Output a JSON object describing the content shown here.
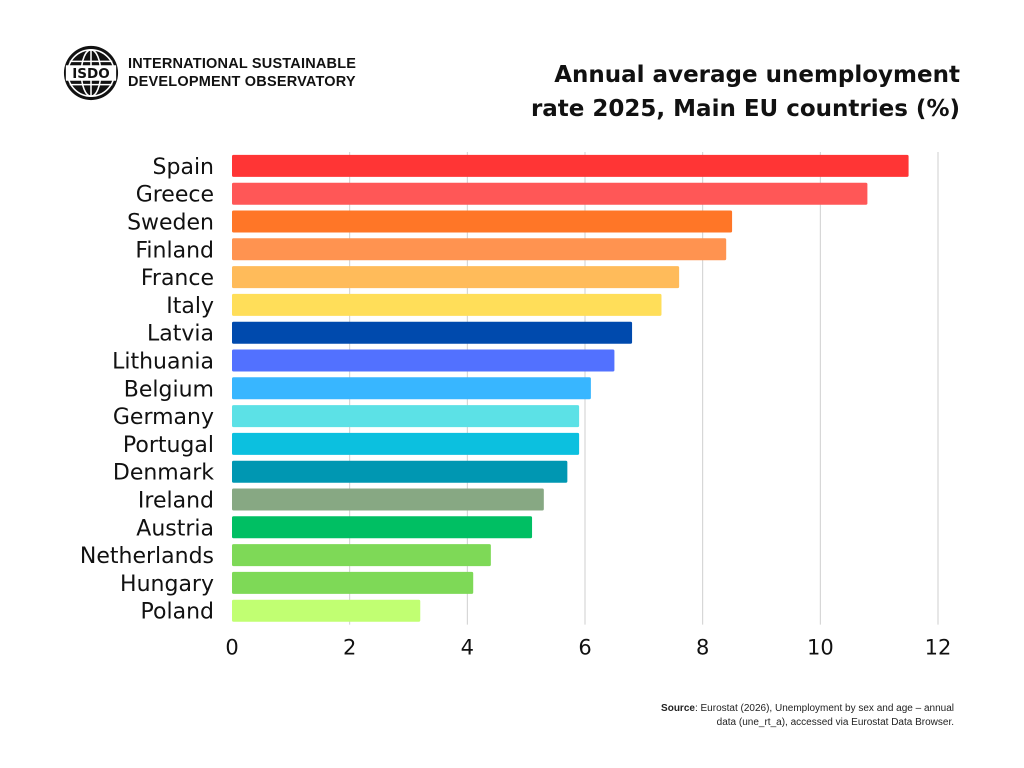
{
  "brand": {
    "logo_text": "ISDO",
    "name_line1": "INTERNATIONAL SUSTAINABLE",
    "name_line2": "DEVELOPMENT OBSERVATORY",
    "logo_icon": "globe-icon"
  },
  "title_line1": "Annual average unemployment",
  "title_line2": "rate 2025, Main EU countries (%)",
  "source": {
    "label": "Source",
    "line1": ": Eurostat (2026), Unemployment by sex and age – annual",
    "line2": "data (une_rt_a), accessed via Eurostat Data Browser."
  },
  "chart_data": {
    "type": "bar",
    "orientation": "horizontal",
    "title": "Annual average unemployment rate 2025, Main EU countries (%)",
    "xlabel": "",
    "ylabel": "",
    "xlim": [
      0,
      12
    ],
    "xticks": [
      0,
      2,
      4,
      6,
      8,
      10,
      12
    ],
    "grid": true,
    "categories": [
      "Spain",
      "Greece",
      "Sweden",
      "Finland",
      "France",
      "Italy",
      "Latvia",
      "Lithuania",
      "Belgium",
      "Germany",
      "Portugal",
      "Denmark",
      "Ireland",
      "Austria",
      "Netherlands",
      "Hungary",
      "Poland"
    ],
    "values": [
      11.5,
      10.8,
      8.5,
      8.4,
      7.6,
      7.3,
      6.8,
      6.5,
      6.1,
      5.9,
      5.9,
      5.7,
      5.3,
      5.1,
      4.4,
      4.1,
      3.2
    ],
    "colors": [
      "#ff3535",
      "#ff5757",
      "#ff7627",
      "#ff9350",
      "#ffbb5a",
      "#ffde59",
      "#004aad",
      "#5271ff",
      "#38b6ff",
      "#5ce1e6",
      "#0cc0df",
      "#0097b2",
      "#87a883",
      "#00bf63",
      "#7ed957",
      "#7ed957",
      "#c1ff72"
    ]
  }
}
